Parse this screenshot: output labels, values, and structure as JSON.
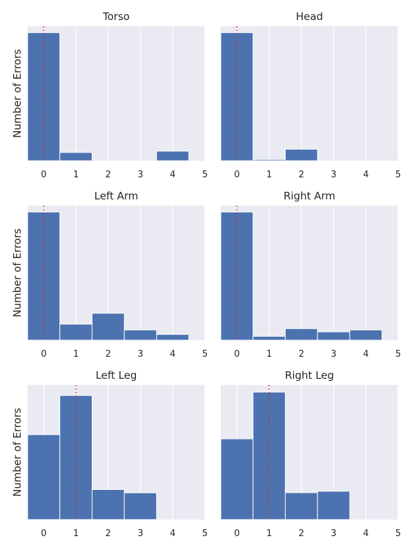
{
  "chart_data": {
    "type": "histogram-grid",
    "ylabel": "Number of Errors",
    "xlim": [
      -0.5,
      5
    ],
    "xticks": [
      "0",
      "1",
      "2",
      "3",
      "4",
      "5"
    ],
    "bin_edges": [
      -0.5,
      0.5,
      1.5,
      2.5,
      3.5,
      4.5
    ],
    "grid": true,
    "panels": [
      {
        "title": "Torso",
        "values": [
          100,
          6.5,
          0,
          0,
          7.5
        ],
        "ymax": 105,
        "ref_x": 0
      },
      {
        "title": "Head",
        "values": [
          100,
          1,
          9,
          0,
          0
        ],
        "ymax": 105,
        "ref_x": 0
      },
      {
        "title": "Left Arm",
        "values": [
          100,
          12.5,
          21,
          8,
          4.5
        ],
        "ymax": 105,
        "ref_x": 0
      },
      {
        "title": "Right Arm",
        "values": [
          100,
          3,
          9,
          6.5,
          8
        ],
        "ymax": 105,
        "ref_x": 0
      },
      {
        "title": "Left Leg",
        "values": [
          65,
          95,
          23,
          20.5,
          0
        ],
        "ymax": 103,
        "ref_x": 1
      },
      {
        "title": "Right Leg",
        "values": [
          57,
          90,
          19,
          20,
          0
        ],
        "ymax": 95,
        "ref_x": 1
      }
    ],
    "colors": {
      "bar": "#4c72b0",
      "background": "#eaeaf2",
      "reference_line": "#e8202a"
    }
  }
}
